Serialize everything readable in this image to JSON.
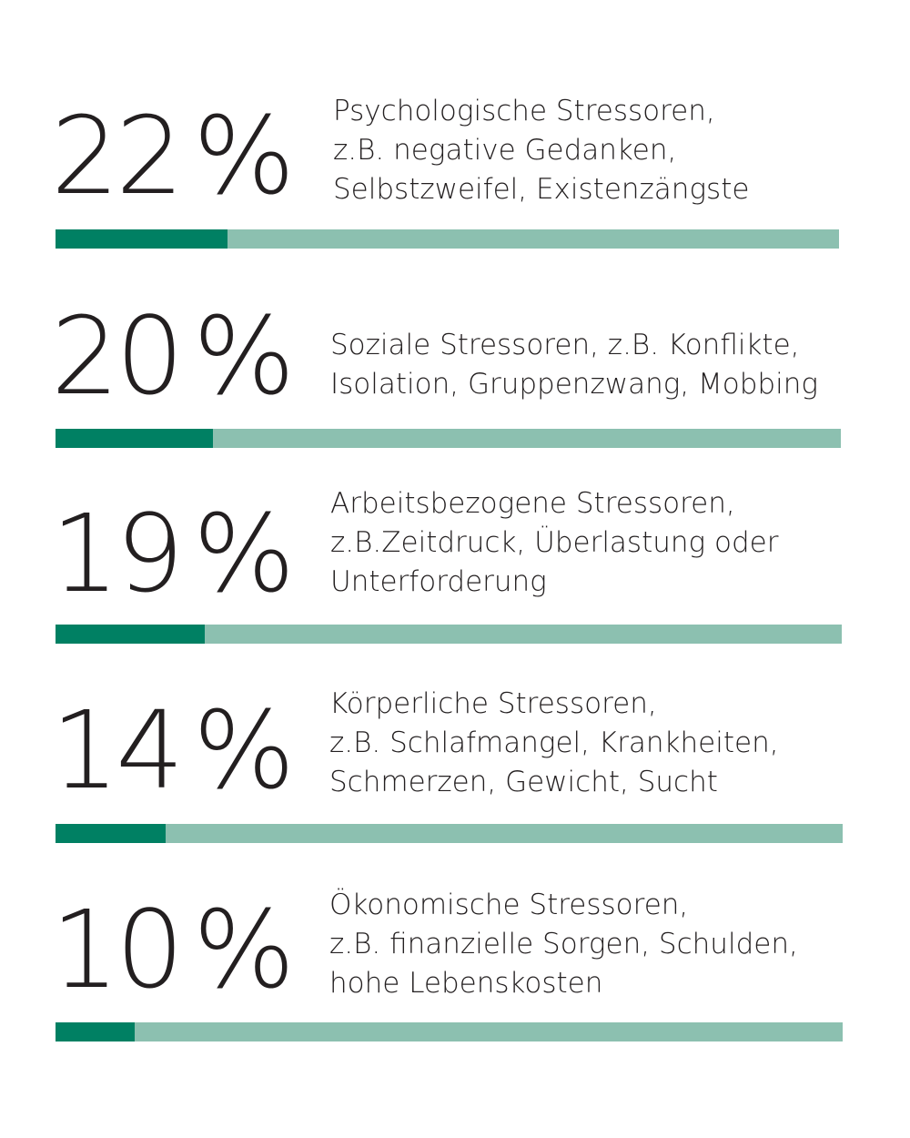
{
  "colors": {
    "bar_fill": "#008063",
    "bar_track": "#8cc0b0",
    "text": "#231f20"
  },
  "chart_data": {
    "type": "bar",
    "orientation": "horizontal",
    "ylim": [
      0,
      100
    ],
    "unit": "%",
    "categories": [
      "Psychologische Stressoren, z.B. negative Gedanken, Selbstzweifel, Existenzängste",
      "Soziale Stressoren, z.B. Konflikte, Isolation, Gruppenzwang, Mobbing",
      "Arbeitsbezogene Stressoren, z.B.Zeitdruck, Überlastung oder Unterforderung",
      "Körperliche Stressoren, z.B. Schlafmangel, Krankheiten, Schmerzen, Gewicht, Sucht",
      "Ökonomische Stressoren, z.B. finanzielle Sorgen, Schulden, hohe Lebenskosten"
    ],
    "values": [
      22,
      20,
      19,
      14,
      10
    ],
    "items": [
      {
        "value_label": "22",
        "unit_label": "%",
        "value": 22,
        "lines": [
          "Psychologische Stressoren,",
          "z.B. negative Gedanken,",
          "Selbstzweifel, Existenzängste"
        ]
      },
      {
        "value_label": "20",
        "unit_label": "%",
        "value": 20,
        "lines": [
          "Soziale Stressoren, z.B. Konflikte,",
          "Isolation, Gruppenzwang, Mobbing"
        ]
      },
      {
        "value_label": "19",
        "unit_label": "%",
        "value": 19,
        "lines": [
          "Arbeitsbezogene Stressoren,",
          "z.B.Zeitdruck, Überlastung oder",
          "Unterforderung"
        ]
      },
      {
        "value_label": "14",
        "unit_label": "%",
        "value": 14,
        "lines": [
          "Körperliche Stressoren,",
          "z.B. Schlafmangel, Krankheiten,",
          "Schmerzen, Gewicht, Sucht"
        ]
      },
      {
        "value_label": "10",
        "unit_label": "%",
        "value": 10,
        "lines": [
          "Ökonomische Stressoren,",
          "z.B. finanzielle Sorgen, Schulden,",
          "hohe Lebenskosten"
        ]
      }
    ]
  }
}
